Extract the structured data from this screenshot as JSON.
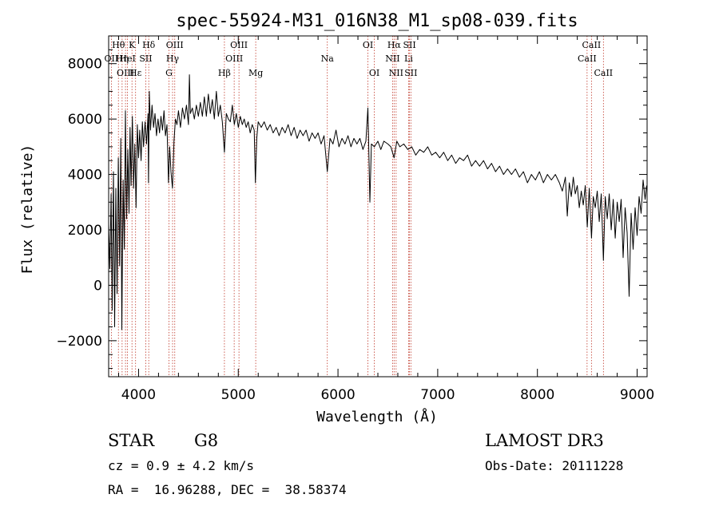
{
  "chart_data": {
    "type": "line",
    "title": "spec-55924-M31_016N38_M1_sp08-039.fits",
    "xlabel": "Wavelength (Å)",
    "ylabel": "Flux (relative)",
    "xlim": [
      3700,
      9100
    ],
    "ylim": [
      -3300,
      9000
    ],
    "xticks": [
      "4000",
      "5000",
      "6000",
      "7000",
      "8000",
      "9000"
    ],
    "xtick_values": [
      4000,
      5000,
      6000,
      7000,
      8000,
      9000
    ],
    "yticks": [
      "−2000",
      "0",
      "2000",
      "4000",
      "6000",
      "8000"
    ],
    "ytick_values": [
      -2000,
      0,
      2000,
      4000,
      6000,
      8000
    ],
    "series": [
      {
        "name": "flux",
        "points": [
          [
            3700,
            2200
          ],
          [
            3712,
            600
          ],
          [
            3725,
            3300
          ],
          [
            3735,
            -900
          ],
          [
            3748,
            4100
          ],
          [
            3760,
            -1500
          ],
          [
            3772,
            3500
          ],
          [
            3785,
            -300
          ],
          [
            3797,
            4600
          ],
          [
            3810,
            700
          ],
          [
            3822,
            5300
          ],
          [
            3832,
            -1600
          ],
          [
            3845,
            3800
          ],
          [
            3857,
            1300
          ],
          [
            3868,
            6300
          ],
          [
            3880,
            2400
          ],
          [
            3892,
            4900
          ],
          [
            3904,
            2600
          ],
          [
            3915,
            5700
          ],
          [
            3925,
            3600
          ],
          [
            3938,
            6100
          ],
          [
            3950,
            3500
          ],
          [
            3963,
            5100
          ],
          [
            3975,
            2800
          ],
          [
            3988,
            5800
          ],
          [
            4000,
            4600
          ],
          [
            4012,
            5600
          ],
          [
            4025,
            4500
          ],
          [
            4038,
            5900
          ],
          [
            4050,
            5000
          ],
          [
            4065,
            5900
          ],
          [
            4080,
            5100
          ],
          [
            4095,
            6200
          ],
          [
            4100,
            3700
          ],
          [
            4108,
            7000
          ],
          [
            4120,
            5600
          ],
          [
            4135,
            6500
          ],
          [
            4150,
            5700
          ],
          [
            4165,
            6200
          ],
          [
            4180,
            5400
          ],
          [
            4195,
            6000
          ],
          [
            4210,
            5500
          ],
          [
            4225,
            6100
          ],
          [
            4240,
            5600
          ],
          [
            4255,
            6300
          ],
          [
            4270,
            5400
          ],
          [
            4285,
            5800
          ],
          [
            4300,
            3700
          ],
          [
            4312,
            5000
          ],
          [
            4325,
            4100
          ],
          [
            4340,
            3500
          ],
          [
            4355,
            5200
          ],
          [
            4370,
            6000
          ],
          [
            4385,
            5800
          ],
          [
            4400,
            6300
          ],
          [
            4420,
            5700
          ],
          [
            4440,
            6400
          ],
          [
            4460,
            6000
          ],
          [
            4480,
            6500
          ],
          [
            4500,
            5800
          ],
          [
            4510,
            7600
          ],
          [
            4520,
            6200
          ],
          [
            4540,
            6400
          ],
          [
            4560,
            6000
          ],
          [
            4580,
            6500
          ],
          [
            4600,
            6100
          ],
          [
            4620,
            6600
          ],
          [
            4640,
            6100
          ],
          [
            4660,
            6800
          ],
          [
            4680,
            6100
          ],
          [
            4700,
            6900
          ],
          [
            4720,
            6200
          ],
          [
            4740,
            6700
          ],
          [
            4760,
            6000
          ],
          [
            4780,
            7000
          ],
          [
            4800,
            6100
          ],
          [
            4820,
            6500
          ],
          [
            4840,
            5900
          ],
          [
            4861,
            4800
          ],
          [
            4880,
            6200
          ],
          [
            4900,
            6000
          ],
          [
            4920,
            5900
          ],
          [
            4940,
            6500
          ],
          [
            4960,
            5800
          ],
          [
            4980,
            6200
          ],
          [
            5000,
            5700
          ],
          [
            5020,
            6100
          ],
          [
            5040,
            5800
          ],
          [
            5060,
            6000
          ],
          [
            5080,
            5700
          ],
          [
            5100,
            5900
          ],
          [
            5120,
            5500
          ],
          [
            5140,
            5800
          ],
          [
            5160,
            5600
          ],
          [
            5172,
            3700
          ],
          [
            5185,
            5300
          ],
          [
            5200,
            5900
          ],
          [
            5230,
            5700
          ],
          [
            5260,
            5900
          ],
          [
            5290,
            5600
          ],
          [
            5320,
            5800
          ],
          [
            5350,
            5500
          ],
          [
            5380,
            5700
          ],
          [
            5410,
            5400
          ],
          [
            5440,
            5700
          ],
          [
            5470,
            5500
          ],
          [
            5500,
            5800
          ],
          [
            5530,
            5400
          ],
          [
            5560,
            5700
          ],
          [
            5590,
            5300
          ],
          [
            5620,
            5600
          ],
          [
            5650,
            5400
          ],
          [
            5680,
            5600
          ],
          [
            5710,
            5200
          ],
          [
            5740,
            5500
          ],
          [
            5770,
            5300
          ],
          [
            5800,
            5500
          ],
          [
            5830,
            5100
          ],
          [
            5860,
            5400
          ],
          [
            5893,
            4100
          ],
          [
            5920,
            5300
          ],
          [
            5950,
            5100
          ],
          [
            5980,
            5600
          ],
          [
            6010,
            5000
          ],
          [
            6040,
            5300
          ],
          [
            6070,
            5100
          ],
          [
            6100,
            5400
          ],
          [
            6130,
            5000
          ],
          [
            6160,
            5300
          ],
          [
            6190,
            5100
          ],
          [
            6220,
            5300
          ],
          [
            6250,
            4900
          ],
          [
            6280,
            5200
          ],
          [
            6300,
            6400
          ],
          [
            6310,
            4700
          ],
          [
            6320,
            3000
          ],
          [
            6335,
            5100
          ],
          [
            6365,
            5000
          ],
          [
            6400,
            5200
          ],
          [
            6430,
            4900
          ],
          [
            6460,
            5200
          ],
          [
            6500,
            5100
          ],
          [
            6530,
            5000
          ],
          [
            6563,
            4600
          ],
          [
            6590,
            5200
          ],
          [
            6620,
            5000
          ],
          [
            6660,
            5100
          ],
          [
            6700,
            4900
          ],
          [
            6740,
            5000
          ],
          [
            6780,
            4700
          ],
          [
            6820,
            4900
          ],
          [
            6860,
            4800
          ],
          [
            6900,
            5000
          ],
          [
            6940,
            4700
          ],
          [
            6980,
            4800
          ],
          [
            7020,
            4600
          ],
          [
            7060,
            4800
          ],
          [
            7100,
            4500
          ],
          [
            7140,
            4700
          ],
          [
            7180,
            4400
          ],
          [
            7220,
            4600
          ],
          [
            7260,
            4500
          ],
          [
            7300,
            4700
          ],
          [
            7340,
            4300
          ],
          [
            7380,
            4500
          ],
          [
            7420,
            4300
          ],
          [
            7460,
            4500
          ],
          [
            7500,
            4200
          ],
          [
            7540,
            4400
          ],
          [
            7580,
            4100
          ],
          [
            7620,
            4300
          ],
          [
            7660,
            4000
          ],
          [
            7700,
            4200
          ],
          [
            7740,
            4000
          ],
          [
            7780,
            4200
          ],
          [
            7820,
            3900
          ],
          [
            7860,
            4100
          ],
          [
            7900,
            3700
          ],
          [
            7940,
            4000
          ],
          [
            7980,
            3800
          ],
          [
            8020,
            4100
          ],
          [
            8060,
            3700
          ],
          [
            8100,
            4000
          ],
          [
            8140,
            3800
          ],
          [
            8180,
            4000
          ],
          [
            8220,
            3700
          ],
          [
            8250,
            3400
          ],
          [
            8280,
            3900
          ],
          [
            8300,
            2500
          ],
          [
            8320,
            3700
          ],
          [
            8340,
            3200
          ],
          [
            8360,
            3900
          ],
          [
            8380,
            3300
          ],
          [
            8400,
            3600
          ],
          [
            8420,
            2800
          ],
          [
            8440,
            3400
          ],
          [
            8460,
            2900
          ],
          [
            8480,
            3600
          ],
          [
            8500,
            2100
          ],
          [
            8520,
            3500
          ],
          [
            8542,
            1700
          ],
          [
            8560,
            3200
          ],
          [
            8580,
            2800
          ],
          [
            8600,
            3400
          ],
          [
            8620,
            2300
          ],
          [
            8640,
            3300
          ],
          [
            8662,
            900
          ],
          [
            8680,
            3200
          ],
          [
            8700,
            2400
          ],
          [
            8720,
            3300
          ],
          [
            8740,
            2000
          ],
          [
            8760,
            3100
          ],
          [
            8780,
            1700
          ],
          [
            8800,
            3000
          ],
          [
            8820,
            2300
          ],
          [
            8840,
            3100
          ],
          [
            8860,
            1000
          ],
          [
            8880,
            2800
          ],
          [
            8900,
            1900
          ],
          [
            8920,
            -400
          ],
          [
            8940,
            2600
          ],
          [
            8960,
            1300
          ],
          [
            8980,
            2800
          ],
          [
            9000,
            1800
          ],
          [
            9020,
            3200
          ],
          [
            9040,
            2600
          ],
          [
            9060,
            3800
          ],
          [
            9080,
            3100
          ],
          [
            9095,
            3600
          ]
        ]
      }
    ],
    "line_labels": [
      {
        "text": "Hθ",
        "wl": 3798,
        "row": 0
      },
      {
        "text": "OII",
        "wl": 3727,
        "row": 1
      },
      {
        "text": "OIII",
        "wl": 3869,
        "row": 2
      },
      {
        "text": "Hη",
        "wl": 3835,
        "row": 1
      },
      {
        "text": "K",
        "wl": 3934,
        "row": 0
      },
      {
        "text": "HeI",
        "wl": 3889,
        "row": 1
      },
      {
        "text": "Hε",
        "wl": 3970,
        "row": 2
      },
      {
        "text": "Hδ",
        "wl": 4102,
        "row": 0
      },
      {
        "text": "SII",
        "wl": 4072,
        "row": 1
      },
      {
        "text": "OIII",
        "wl": 4363,
        "row": 0
      },
      {
        "text": "Hγ",
        "wl": 4341,
        "row": 1
      },
      {
        "text": "G",
        "wl": 4305,
        "row": 2
      },
      {
        "text": "Hβ",
        "wl": 4861,
        "row": 2
      },
      {
        "text": "OIII",
        "wl": 4959,
        "row": 1
      },
      {
        "text": "OIII",
        "wl": 5007,
        "row": 0
      },
      {
        "text": "Mg",
        "wl": 5175,
        "row": 2
      },
      {
        "text": "Na",
        "wl": 5893,
        "row": 1
      },
      {
        "text": "OI",
        "wl": 6300,
        "row": 0
      },
      {
        "text": "OI",
        "wl": 6364,
        "row": 2
      },
      {
        "text": "Hα",
        "wl": 6563,
        "row": 0
      },
      {
        "text": "NII",
        "wl": 6548,
        "row": 1
      },
      {
        "text": "NII",
        "wl": 6583,
        "row": 2
      },
      {
        "text": "SII",
        "wl": 6717,
        "row": 0
      },
      {
        "text": "Li",
        "wl": 6708,
        "row": 1
      },
      {
        "text": "SII",
        "wl": 6731,
        "row": 2
      },
      {
        "text": "CaII",
        "wl": 8542,
        "row": 0
      },
      {
        "text": "CaII",
        "wl": 8498,
        "row": 1
      },
      {
        "text": "CaII",
        "wl": 8662,
        "row": 2
      }
    ],
    "line_color": "#c0392b",
    "spectrum_color": "#000000"
  },
  "info": {
    "object_class": "STAR",
    "subclass": "G8",
    "survey": "LAMOST DR3",
    "cz": "cz = 0.9 ± 4.2 km/s",
    "obs_date": "Obs-Date: 20111228",
    "coords": "RA =  16.96288, DEC =  38.58374"
  }
}
